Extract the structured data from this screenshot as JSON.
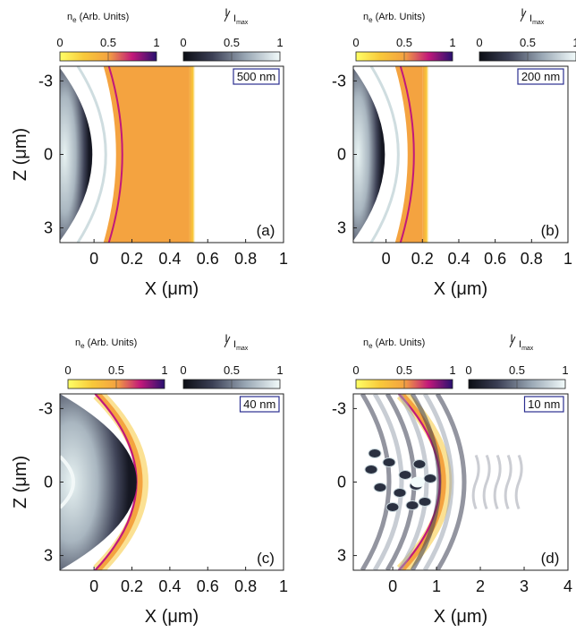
{
  "chart_data": [
    {
      "panel": "(a)",
      "type": "heatmap",
      "thickness_label": "500 nm",
      "xticks": [
        "0",
        "0.2",
        "0.4",
        "0.6",
        "0.8",
        "1"
      ],
      "xlim": [
        -0.18,
        1.0
      ],
      "yticks": [
        "-3",
        "0",
        "3"
      ],
      "ylim": [
        -3.6,
        3.6
      ],
      "xlabel": "X (μm)",
      "ylabel": "Z (μm)",
      "target_front_x": 0.05,
      "target_back_x": 0.5,
      "beam_edge_x": 0.03
    },
    {
      "panel": "(b)",
      "type": "heatmap",
      "thickness_label": "200 nm",
      "xticks": [
        "0",
        "0.2",
        "0.4",
        "0.6",
        "0.8",
        "1"
      ],
      "xlim": [
        -0.18,
        1.0
      ],
      "yticks": [
        "-3",
        "0",
        "3"
      ],
      "ylim": [
        -3.6,
        3.6
      ],
      "xlabel": "X (μm)",
      "ylabel": "",
      "target_front_x": 0.05,
      "target_back_x": 0.2,
      "beam_edge_x": 0.03
    },
    {
      "panel": "(c)",
      "type": "heatmap",
      "thickness_label": "40 nm",
      "xticks": [
        "0",
        "0.2",
        "0.4",
        "0.6",
        "0.8",
        "1"
      ],
      "xlim": [
        -0.18,
        1.0
      ],
      "yticks": [
        "-3",
        "0",
        "3"
      ],
      "ylim": [
        -3.6,
        3.6
      ],
      "xlabel": "X (μm)",
      "ylabel": "Z (μm)",
      "target_front_x": 0.32,
      "target_back_x": 0.4,
      "beam_edge_x": 0.3
    },
    {
      "panel": "(d)",
      "type": "heatmap",
      "thickness_label": "10 nm",
      "xticks": [
        "0",
        "1",
        "2",
        "3",
        "4"
      ],
      "xlim": [
        -0.9,
        4.0
      ],
      "yticks": [
        "-3",
        "0",
        "3"
      ],
      "ylim": [
        -3.6,
        3.6
      ],
      "xlabel": "X (μm)",
      "ylabel": "",
      "target_front_x": 1.3,
      "target_back_x": 1.7,
      "beam_edge_x": 1.4
    }
  ],
  "colorbars": {
    "density": {
      "title": "n",
      "title_sub": "e",
      "title_rest": " (Arb. Units)",
      "ticks": [
        "0",
        "0.5",
        "1"
      ]
    },
    "intensity": {
      "title_num": "I",
      "title_den": "I",
      "title_den_sub": "max",
      "ticks": [
        "0",
        "0.5",
        "1"
      ]
    }
  },
  "colors": {
    "orange": "#f4a340",
    "purple": "#7a1fa0",
    "magenta": "#c2187a",
    "dark": "#1c1f2b",
    "ice": "#d8e9ec",
    "navy": "#2b2f8f"
  }
}
